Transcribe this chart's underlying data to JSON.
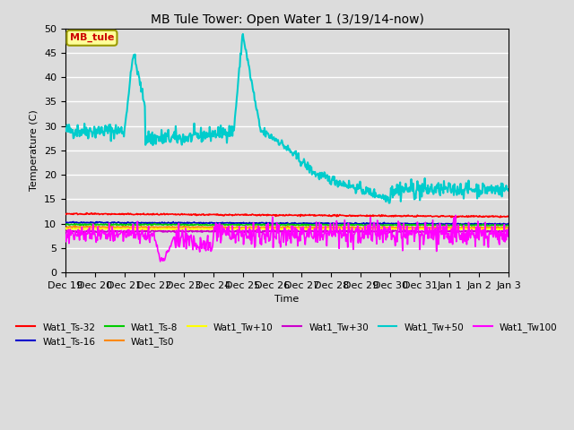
{
  "title": "MB Tule Tower: Open Water 1 (3/19/14-now)",
  "xlabel": "Time",
  "ylabel": "Temperature (C)",
  "ylim": [
    0,
    50
  ],
  "xlim": [
    0,
    15
  ],
  "xtick_labels": [
    "Dec 19",
    "Dec 20",
    "Dec 21",
    "Dec 22",
    "Dec 23",
    "Dec 24",
    "Dec 25",
    "Dec 26",
    "Dec 27",
    "Dec 28",
    "Dec 29",
    "Dec 30",
    "Dec 31",
    "Jan 1",
    "Jan 2",
    "Jan 3"
  ],
  "bg_color": "#dcdcdc",
  "plot_bg_color": "#dcdcdc",
  "grid_color": "#ffffff",
  "series": {
    "Wat1_Ts-32": {
      "color": "#ff0000",
      "lw": 1.2
    },
    "Wat1_Ts-16": {
      "color": "#0000cc",
      "lw": 1.2
    },
    "Wat1_Ts-8": {
      "color": "#00cc00",
      "lw": 1.2
    },
    "Wat1_Ts0": {
      "color": "#ff8800",
      "lw": 1.2
    },
    "Wat1_Tw+10": {
      "color": "#ffff00",
      "lw": 1.2
    },
    "Wat1_Tw+30": {
      "color": "#cc00cc",
      "lw": 1.2
    },
    "Wat1_Tw+50": {
      "color": "#00cccc",
      "lw": 1.5
    },
    "Wat1_Tw100": {
      "color": "#ff00ff",
      "lw": 1.2
    }
  },
  "annotation_box": {
    "text": "MB_tule",
    "color": "#cc0000",
    "bg": "#ffff99",
    "border": "#999900"
  }
}
